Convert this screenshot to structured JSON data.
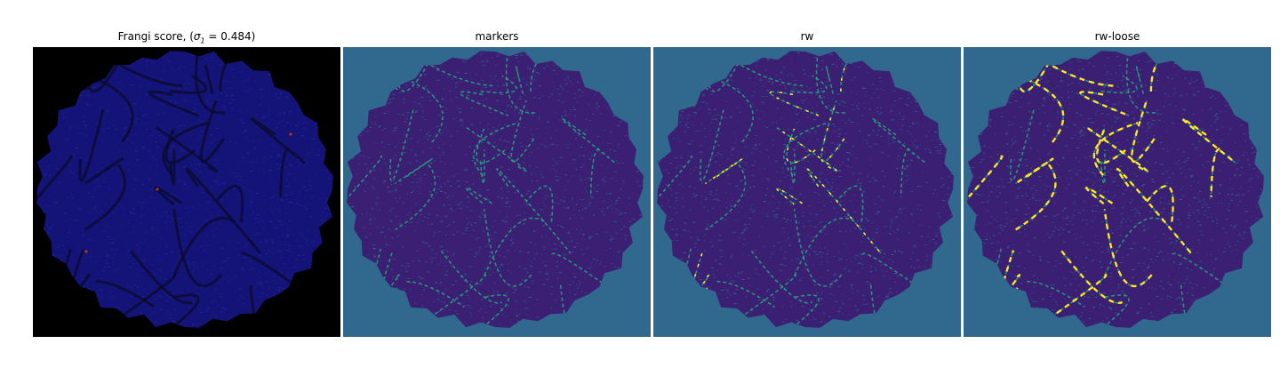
{
  "panels": [
    {
      "title_prefix": "Frangi score, (",
      "sigma_symbol": "σ",
      "sigma_subscript": "1",
      "title_suffix": " = 0.484)",
      "background": "#000000",
      "disk_color": "#141478",
      "accent": "#c83c00"
    },
    {
      "title": "markers",
      "background": "#31688e",
      "disk_color": "#3b1f73",
      "accent": "#27ad81"
    },
    {
      "title": "rw",
      "background": "#31688e",
      "disk_color": "#3b1f73",
      "accent": "#27ad81",
      "highlight": "#fde725"
    },
    {
      "title": "rw-loose",
      "background": "#31688e",
      "disk_color": "#3b1f73",
      "accent": "#27ad81",
      "highlight": "#fde725"
    }
  ]
}
